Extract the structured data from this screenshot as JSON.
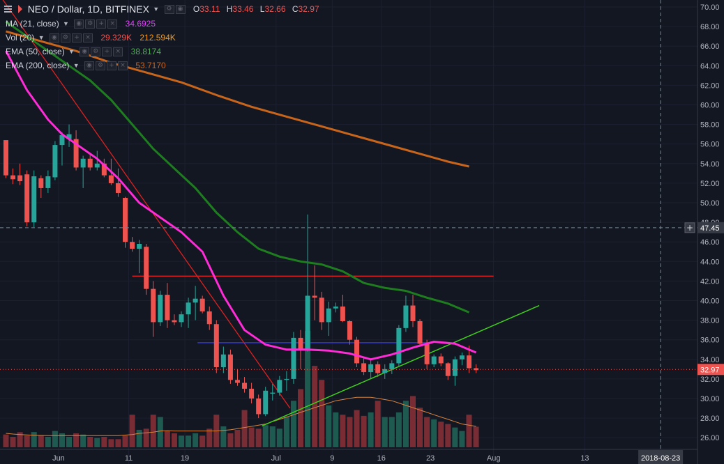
{
  "header": {
    "menu_icon": "menu-icon",
    "symbol_title": "NEO / Dollar, 1D, BITFINEX",
    "o_label": "O",
    "o_value": "33.11",
    "h_label": "H",
    "h_value": "33.46",
    "l_label": "L",
    "l_value": "32.66",
    "c_label": "C",
    "c_value": "32.97"
  },
  "indicators": [
    {
      "label": "MA (21, close)",
      "value": "34.6925",
      "color": "#e040fb"
    },
    {
      "label": "Vol (20)",
      "value": "29.329K",
      "value2": "212.594K",
      "color": "#ef5350",
      "color2": "#ff9800"
    },
    {
      "label": "EMA (50, close)",
      "value": "38.8174",
      "color": "#4caf50"
    },
    {
      "label": "EMA (200, close)",
      "value": "53.7170",
      "color": "#c8651b"
    }
  ],
  "colors": {
    "background": "#131722",
    "up": "#26a69a",
    "down": "#ef5350",
    "ma21": "#ff2bd6",
    "ema50": "#1e7d1e",
    "ema200": "#c8651b",
    "vol_ma": "#d9843d",
    "trend_red": "#e02020",
    "trend_green": "#3fd01a",
    "level_blue": "#3535e0",
    "level_red": "#e02020"
  },
  "chart_data": {
    "type": "candlestick",
    "symbol": "NEO / Dollar",
    "interval": "1D",
    "exchange": "BITFINEX",
    "ylim": [
      24.9,
      71.2
    ],
    "y_ticks": [
      "26.00",
      "28.00",
      "30.00",
      "32.00",
      "34.00",
      "36.00",
      "38.00",
      "40.00",
      "42.00",
      "44.00",
      "46.00",
      "48.00",
      "50.00",
      "52.00",
      "54.00",
      "56.00",
      "58.00",
      "60.00",
      "62.00",
      "64.00",
      "66.00",
      "68.00",
      "70.00"
    ],
    "x_ticks": [
      "Jun",
      "11",
      "19",
      "Jul",
      "9",
      "16",
      "23",
      "Aug",
      "13"
    ],
    "last_price_label": "32.97",
    "last_price": 32.97,
    "crosshair_price_label": "47.45",
    "crosshair_price": 47.45,
    "crosshair_date_label": "2018-08-23",
    "plus_button": "+",
    "candles": [
      {
        "o": 56.4,
        "h": 56.4,
        "l": 52.5,
        "c": 52.8
      },
      {
        "o": 52.8,
        "h": 53.5,
        "l": 51.9,
        "c": 52.4
      },
      {
        "o": 52.8,
        "h": 54.0,
        "l": 51.8,
        "c": 52.2
      },
      {
        "o": 52.9,
        "h": 53.3,
        "l": 47.6,
        "c": 48.0
      },
      {
        "o": 48.0,
        "h": 53.3,
        "l": 47.5,
        "c": 52.7
      },
      {
        "o": 52.5,
        "h": 52.8,
        "l": 50.5,
        "c": 51.5
      },
      {
        "o": 51.5,
        "h": 53.3,
        "l": 51.0,
        "c": 52.7
      },
      {
        "o": 52.6,
        "h": 56.3,
        "l": 52.3,
        "c": 55.9
      },
      {
        "o": 55.9,
        "h": 57.2,
        "l": 53.8,
        "c": 56.9
      },
      {
        "o": 56.5,
        "h": 58.0,
        "l": 55.7,
        "c": 57.0
      },
      {
        "o": 56.5,
        "h": 57.4,
        "l": 53.3,
        "c": 53.6
      },
      {
        "o": 53.6,
        "h": 54.8,
        "l": 51.5,
        "c": 54.5
      },
      {
        "o": 54.5,
        "h": 55.0,
        "l": 53.3,
        "c": 53.6
      },
      {
        "o": 53.6,
        "h": 55.3,
        "l": 53.3,
        "c": 54.0
      },
      {
        "o": 54.0,
        "h": 54.5,
        "l": 52.6,
        "c": 52.8
      },
      {
        "o": 52.8,
        "h": 54.5,
        "l": 51.8,
        "c": 52.0
      },
      {
        "o": 52.0,
        "h": 53.5,
        "l": 50.6,
        "c": 51.0
      },
      {
        "o": 50.5,
        "h": 50.6,
        "l": 45.4,
        "c": 46.0
      },
      {
        "o": 46.0,
        "h": 46.5,
        "l": 45.0,
        "c": 45.3
      },
      {
        "o": 45.3,
        "h": 46.2,
        "l": 42.8,
        "c": 45.8
      },
      {
        "o": 45.5,
        "h": 45.8,
        "l": 40.6,
        "c": 41.2
      },
      {
        "o": 41.2,
        "h": 42.0,
        "l": 36.3,
        "c": 37.8
      },
      {
        "o": 37.8,
        "h": 41.0,
        "l": 37.4,
        "c": 40.6
      },
      {
        "o": 40.6,
        "h": 41.8,
        "l": 37.2,
        "c": 38.0
      },
      {
        "o": 38.0,
        "h": 38.6,
        "l": 37.5,
        "c": 37.8
      },
      {
        "o": 37.8,
        "h": 38.9,
        "l": 37.3,
        "c": 38.6
      },
      {
        "o": 38.6,
        "h": 40.3,
        "l": 37.2,
        "c": 39.8
      },
      {
        "o": 39.8,
        "h": 41.5,
        "l": 38.0,
        "c": 40.2
      },
      {
        "o": 40.2,
        "h": 40.5,
        "l": 38.7,
        "c": 38.9
      },
      {
        "o": 38.9,
        "h": 39.4,
        "l": 37.0,
        "c": 37.6
      },
      {
        "o": 37.6,
        "h": 38.0,
        "l": 32.6,
        "c": 33.2
      },
      {
        "o": 33.2,
        "h": 35.3,
        "l": 32.6,
        "c": 34.5
      },
      {
        "o": 34.5,
        "h": 35.0,
        "l": 31.5,
        "c": 31.9
      },
      {
        "o": 31.9,
        "h": 33.0,
        "l": 31.3,
        "c": 31.6
      },
      {
        "o": 31.6,
        "h": 32.2,
        "l": 30.6,
        "c": 31.0
      },
      {
        "o": 31.0,
        "h": 31.6,
        "l": 29.5,
        "c": 30.0
      },
      {
        "o": 30.0,
        "h": 30.4,
        "l": 28.0,
        "c": 28.4
      },
      {
        "o": 28.4,
        "h": 31.2,
        "l": 28.2,
        "c": 30.8
      },
      {
        "o": 30.5,
        "h": 31.5,
        "l": 29.8,
        "c": 30.6
      },
      {
        "o": 30.6,
        "h": 32.3,
        "l": 30.3,
        "c": 31.9
      },
      {
        "o": 31.9,
        "h": 32.8,
        "l": 30.8,
        "c": 32.0
      },
      {
        "o": 32.0,
        "h": 36.8,
        "l": 31.5,
        "c": 36.2
      },
      {
        "o": 36.2,
        "h": 37.0,
        "l": 33.0,
        "c": 35.0
      },
      {
        "o": 35.0,
        "h": 48.8,
        "l": 34.8,
        "c": 40.5
      },
      {
        "o": 40.5,
        "h": 43.6,
        "l": 38.0,
        "c": 40.3
      },
      {
        "o": 40.3,
        "h": 40.9,
        "l": 37.0,
        "c": 37.8
      },
      {
        "o": 37.8,
        "h": 39.9,
        "l": 36.4,
        "c": 39.2
      },
      {
        "o": 39.2,
        "h": 39.8,
        "l": 38.8,
        "c": 39.4
      },
      {
        "o": 39.4,
        "h": 40.6,
        "l": 37.8,
        "c": 37.9
      },
      {
        "o": 37.9,
        "h": 38.0,
        "l": 35.5,
        "c": 36.0
      },
      {
        "o": 36.0,
        "h": 36.3,
        "l": 33.2,
        "c": 33.6
      },
      {
        "o": 33.6,
        "h": 34.2,
        "l": 32.4,
        "c": 32.7
      },
      {
        "o": 32.7,
        "h": 34.0,
        "l": 32.0,
        "c": 33.5
      },
      {
        "o": 33.5,
        "h": 33.8,
        "l": 32.2,
        "c": 32.6
      },
      {
        "o": 32.6,
        "h": 33.5,
        "l": 32.0,
        "c": 33.0
      },
      {
        "o": 33.0,
        "h": 33.9,
        "l": 32.5,
        "c": 33.6
      },
      {
        "o": 33.6,
        "h": 37.5,
        "l": 33.3,
        "c": 37.2
      },
      {
        "o": 37.2,
        "h": 40.5,
        "l": 36.8,
        "c": 39.5
      },
      {
        "o": 39.5,
        "h": 40.6,
        "l": 37.3,
        "c": 37.9
      },
      {
        "o": 37.9,
        "h": 38.1,
        "l": 35.3,
        "c": 35.6
      },
      {
        "o": 35.6,
        "h": 36.0,
        "l": 33.0,
        "c": 33.5
      },
      {
        "o": 33.5,
        "h": 34.5,
        "l": 33.2,
        "c": 34.3
      },
      {
        "o": 34.3,
        "h": 34.6,
        "l": 33.3,
        "c": 33.6
      },
      {
        "o": 33.6,
        "h": 33.7,
        "l": 31.9,
        "c": 32.3
      },
      {
        "o": 32.3,
        "h": 34.3,
        "l": 31.3,
        "c": 34.0
      },
      {
        "o": 34.0,
        "h": 34.7,
        "l": 33.4,
        "c": 34.4
      },
      {
        "o": 34.4,
        "h": 35.4,
        "l": 32.6,
        "c": 33.1
      },
      {
        "o": 33.1,
        "h": 33.5,
        "l": 32.6,
        "c": 32.9
      }
    ],
    "volume": [
      0.0182,
      0.0149,
      0.0215,
      0.0166,
      0.0217,
      0.0166,
      0.0149,
      0.0232,
      0.0199,
      0.0149,
      0.0199,
      0.0182,
      0.0149,
      0.0132,
      0.0149,
      0.0116,
      0.0116,
      0.0166,
      0.0464,
      0.0249,
      0.0265,
      0.0464,
      0.0431,
      0.0232,
      0.0199,
      0.0166,
      0.0166,
      0.0199,
      0.0166,
      0.0265,
      0.0464,
      0.0298,
      0.0199,
      0.0249,
      0.0531,
      0.0282,
      0.0265,
      0.0315,
      0.0298,
      0.0265,
      0.0431,
      0.0663,
      0.0829,
      0.1658,
      0.1161,
      0.0961,
      0.0597,
      0.0497,
      0.0464,
      0.0431,
      0.0531,
      0.0448,
      0.0497,
      0.0663,
      0.0431,
      0.0431,
      0.0497,
      0.0663,
      0.073,
      0.0564,
      0.0431,
      0.0398,
      0.0365,
      0.0332,
      0.0282,
      0.0232,
      0.0464,
      0.0293
    ],
    "vol_ma20": [
      0.0199,
      0.0189,
      0.0182,
      0.0176,
      0.0172,
      0.0169,
      0.0166,
      0.0166,
      0.0166,
      0.0166,
      0.0166,
      0.0166,
      0.0166,
      0.0166,
      0.0166,
      0.0166,
      0.0166,
      0.0174,
      0.0182,
      0.0199,
      0.0207,
      0.0215,
      0.0232,
      0.0236,
      0.0232,
      0.0232,
      0.0232,
      0.0232,
      0.0232,
      0.0232,
      0.0232,
      0.024,
      0.0249,
      0.0265,
      0.0282,
      0.0298,
      0.0315,
      0.0332,
      0.0365,
      0.0398,
      0.0431,
      0.0464,
      0.0497,
      0.0531,
      0.0564,
      0.0597,
      0.063,
      0.0663,
      0.068,
      0.0697,
      0.0713,
      0.0713,
      0.0713,
      0.0697,
      0.068,
      0.0663,
      0.063,
      0.0597,
      0.0564,
      0.0531,
      0.0497,
      0.0464,
      0.0431,
      0.0398,
      0.0365,
      0.0332,
      0.0315,
      0.0298
    ],
    "ma21": [
      [
        0,
        65.5
      ],
      [
        3,
        61.5
      ],
      [
        6,
        58.5
      ],
      [
        8,
        57.0
      ],
      [
        10,
        56.0
      ],
      [
        13,
        54.5
      ],
      [
        16,
        52.5
      ],
      [
        19,
        50.0
      ],
      [
        22,
        48.5
      ],
      [
        25,
        47.0
      ],
      [
        28,
        45.0
      ],
      [
        31,
        40.5
      ],
      [
        34,
        37.0
      ],
      [
        37,
        35.5
      ],
      [
        40,
        35.0
      ],
      [
        43,
        35.0
      ],
      [
        46,
        34.9
      ],
      [
        49,
        34.6
      ],
      [
        52,
        34.0
      ],
      [
        55,
        34.5
      ],
      [
        58,
        35.2
      ],
      [
        61,
        35.8
      ],
      [
        64,
        35.6
      ],
      [
        67,
        34.7
      ]
    ],
    "ema50": [
      [
        0,
        68.5
      ],
      [
        3,
        67.0
      ],
      [
        6,
        65.5
      ],
      [
        9,
        64.0
      ],
      [
        12,
        62.5
      ],
      [
        15,
        60.5
      ],
      [
        18,
        58.0
      ],
      [
        21,
        55.5
      ],
      [
        24,
        53.5
      ],
      [
        27,
        51.5
      ],
      [
        30,
        49.0
      ],
      [
        33,
        47.0
      ],
      [
        36,
        45.3
      ],
      [
        39,
        44.5
      ],
      [
        42,
        44.0
      ],
      [
        45,
        43.7
      ],
      [
        48,
        43.0
      ],
      [
        51,
        41.8
      ],
      [
        54,
        41.3
      ],
      [
        57,
        41.0
      ],
      [
        60,
        40.3
      ],
      [
        63,
        39.7
      ],
      [
        66,
        38.8
      ]
    ],
    "ema200": [
      [
        0,
        67.5
      ],
      [
        5,
        66.5
      ],
      [
        10,
        65.5
      ],
      [
        15,
        64.3
      ],
      [
        20,
        63.3
      ],
      [
        25,
        62.3
      ],
      [
        30,
        61.0
      ],
      [
        35,
        59.8
      ],
      [
        40,
        58.8
      ],
      [
        45,
        57.8
      ],
      [
        50,
        56.8
      ],
      [
        55,
        55.8
      ],
      [
        60,
        54.8
      ],
      [
        63,
        54.2
      ],
      [
        66,
        53.7
      ]
    ],
    "drawings": {
      "trend_red": [
        [
          -0.5,
          70.8
        ],
        [
          40.5,
          29.0
        ]
      ],
      "trend_green": [
        [
          36.5,
          27.2
        ],
        [
          76,
          39.5
        ]
      ],
      "level_red": {
        "y": 42.5,
        "x1": 18,
        "x2": 69.5
      },
      "level_blue": {
        "y": 35.7,
        "x1": 27.3,
        "x2": 60.5
      }
    }
  }
}
